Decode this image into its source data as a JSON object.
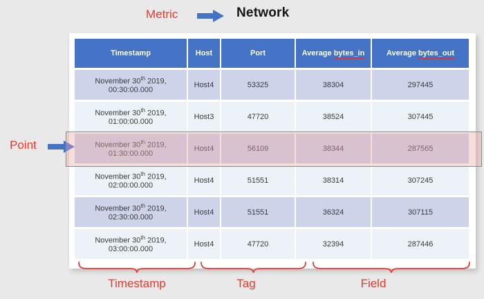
{
  "colors": {
    "page_bg": "#e9e9e9",
    "accent_blue": "#4472c4",
    "annotation_red": "#e8392e",
    "row_odd_bg": "#cdd4ea",
    "row_even_bg": "#edf1f8",
    "highlight_overlay": "rgba(236,166,166,0.38)",
    "highlight_border": "#8a8a8a",
    "header_text": "#ffffff",
    "body_text": "#3a3a3a"
  },
  "annotations": {
    "metric_label": "Metric",
    "metric_value": "Network",
    "point_label": "Point",
    "braces": [
      {
        "label": "Timestamp"
      },
      {
        "label": "Tag"
      },
      {
        "label": "Field"
      }
    ]
  },
  "table": {
    "headers": [
      {
        "label": "Timestamp"
      },
      {
        "label": "Host"
      },
      {
        "label": "Port"
      },
      {
        "label": "Average bytes_in",
        "underline": "bytes_in"
      },
      {
        "label": "Average bytes_out",
        "underline": "bytes_out"
      }
    ],
    "column_keys": [
      "timestamp",
      "host",
      "port",
      "bytes_in",
      "bytes_out"
    ],
    "highlighted_row_index": 2,
    "rows": [
      {
        "timestamp": "November 30th 2019, 00:30:00.000",
        "host": "Host4",
        "port": "53325",
        "bytes_in": "38304",
        "bytes_out": "297445"
      },
      {
        "timestamp": "November 30th 2019, 01:00:00.000",
        "host": "Host3",
        "port": "47720",
        "bytes_in": "38524",
        "bytes_out": "307445"
      },
      {
        "timestamp": "November 30th 2019, 01:30:00.000",
        "host": "Host4",
        "port": "56109",
        "bytes_in": "38344",
        "bytes_out": "287565"
      },
      {
        "timestamp": "November 30th 2019, 02:00:00.000",
        "host": "Host4",
        "port": "51551",
        "bytes_in": "38314",
        "bytes_out": "307245"
      },
      {
        "timestamp": "November 30th 2019, 02:30:00.000",
        "host": "Host4",
        "port": "51551",
        "bytes_in": "36324",
        "bytes_out": "307115"
      },
      {
        "timestamp": "November 30th 2019, 03:00:00.000",
        "host": "Host4",
        "port": "47720",
        "bytes_in": "32394",
        "bytes_out": "287446"
      }
    ]
  }
}
